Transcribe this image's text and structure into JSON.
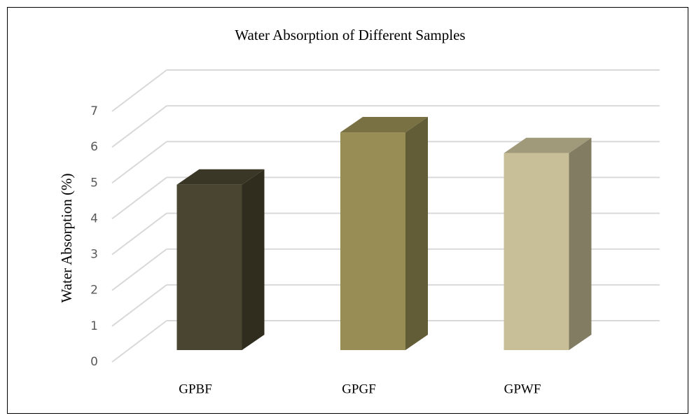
{
  "chart_data": {
    "type": "bar3d",
    "title": "Water Absorption of Different Samples",
    "y_label": "Water Absorption (%)",
    "categories": [
      "GPBF",
      "GPGF",
      "GPWF"
    ],
    "values": [
      4.62,
      6.08,
      5.5
    ],
    "colors": [
      "#4a4530",
      "#978d55",
      "#c8bf98"
    ],
    "ylim": [
      0,
      7
    ],
    "yticks": [
      0,
      1,
      2,
      3,
      4,
      5,
      6,
      7
    ],
    "grid": true
  }
}
